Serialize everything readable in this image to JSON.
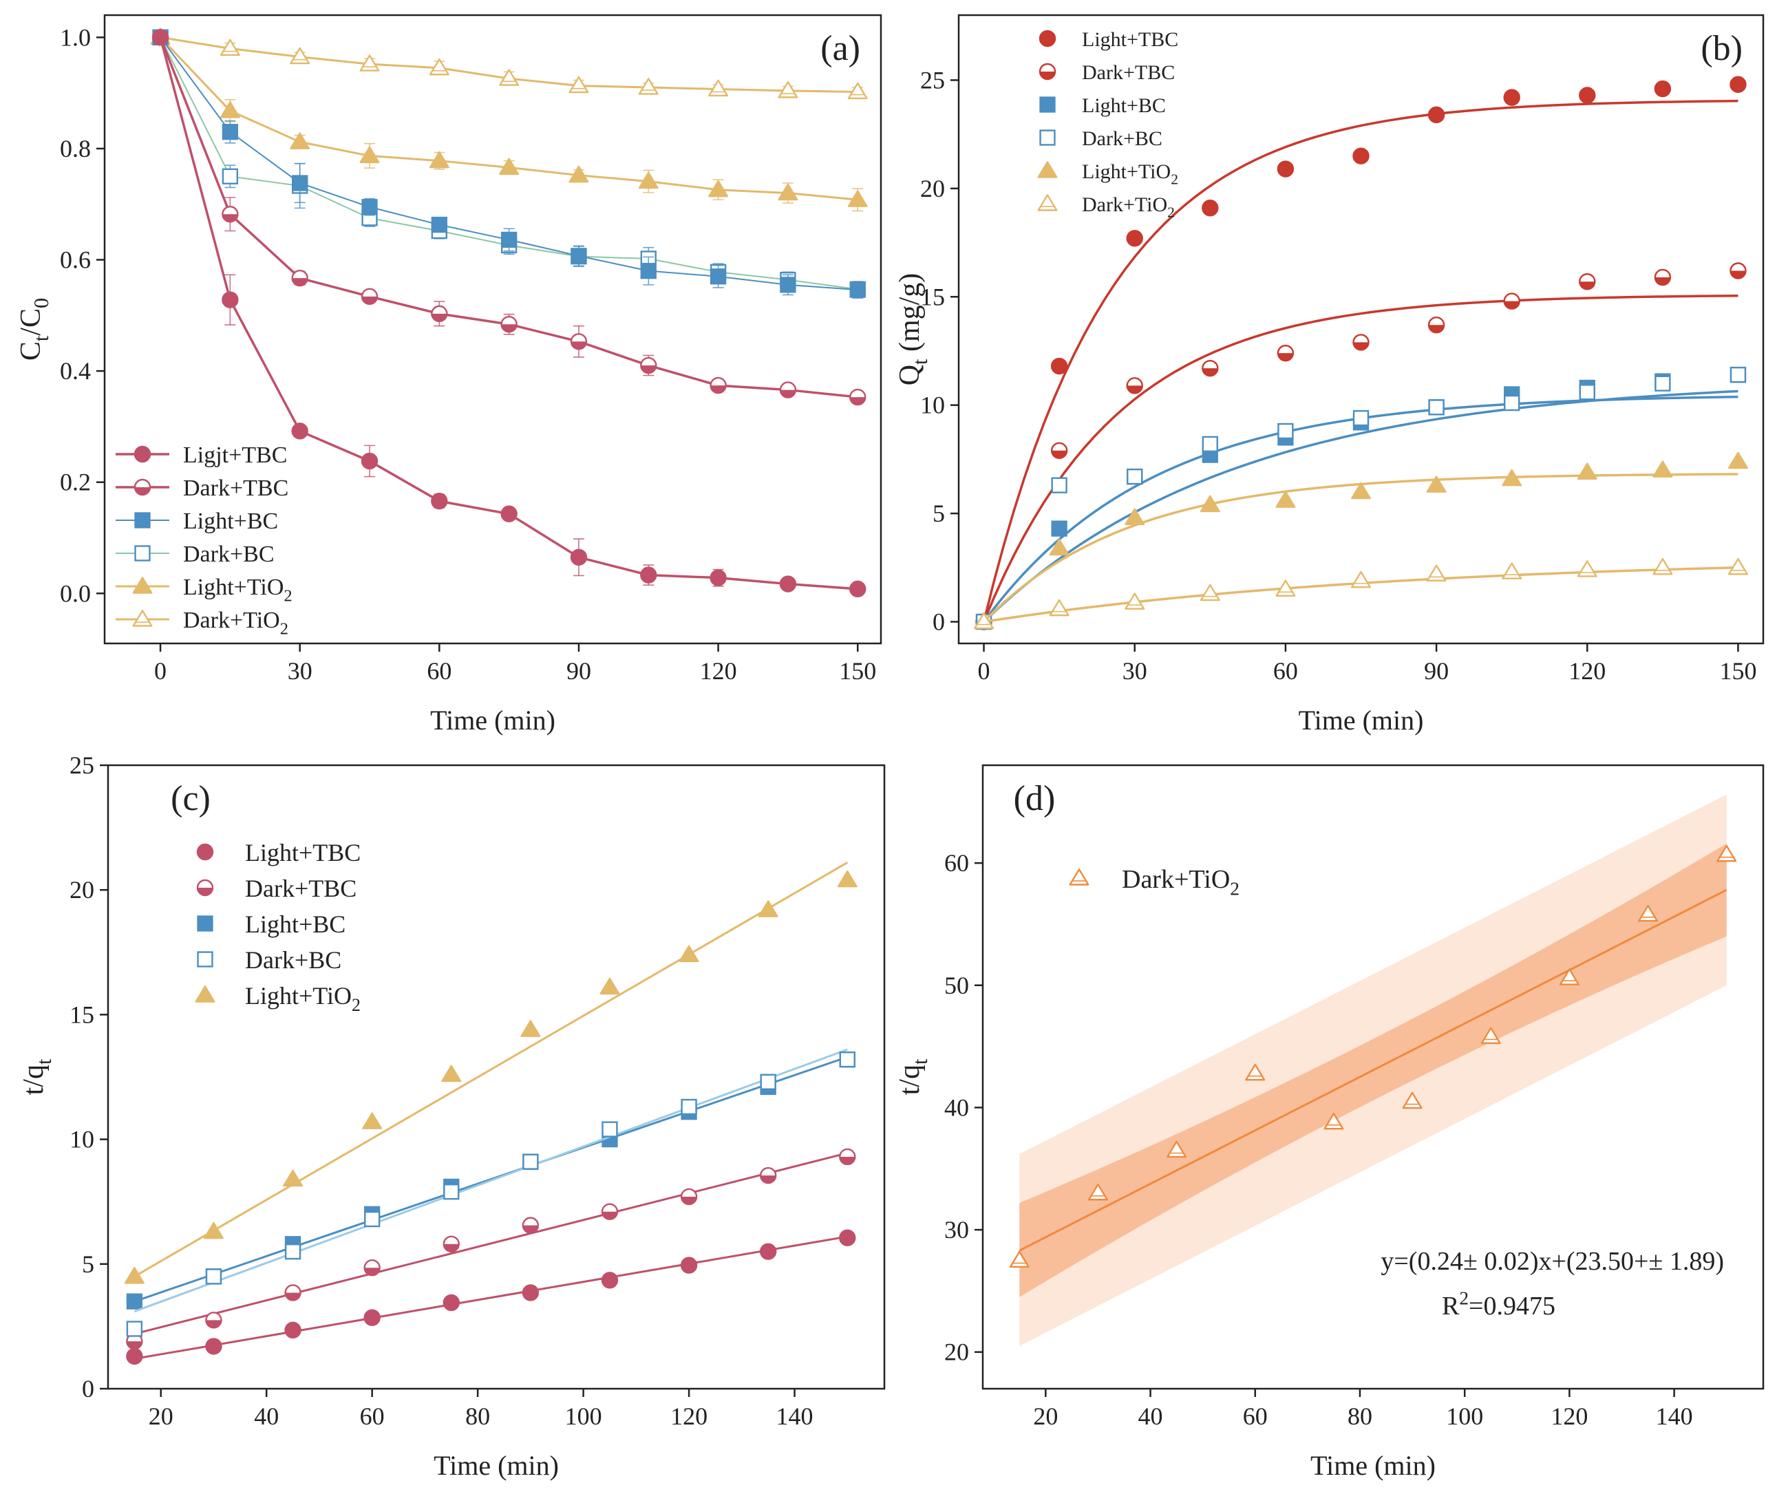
{
  "colors": {
    "tbc": "#c0506a",
    "tbc_b": "#c8392e",
    "bc": "#4a8ec2",
    "bc_dark_line": "#8cc7a4",
    "tio2": "#e3b96a",
    "tio2_d": "#f08a3c",
    "band_inner": "#f6b48a",
    "band_outer": "#fde3d2",
    "axis": "#222222"
  },
  "chart_data": [
    {
      "id": "a",
      "type": "line",
      "panel_label": "(a)",
      "xlabel": "Time (min)",
      "ylabel": "Ct/C0",
      "ylabel_main": "C",
      "ylabel_sub1": "t",
      "ylabel_slash": "/C",
      "ylabel_sub2": "0",
      "xlim": [
        -12,
        155
      ],
      "ylim": [
        -0.09,
        1.04
      ],
      "xticks": [
        0,
        30,
        60,
        90,
        120,
        150
      ],
      "xtick_labels": [
        "0",
        "30",
        "60",
        "90",
        "120",
        "150"
      ],
      "yticks": [
        0,
        0.2,
        0.4,
        0.6,
        0.8,
        1.0
      ],
      "ytick_labels": [
        "0.0",
        "0.2",
        "0.4",
        "0.6",
        "0.8",
        "1.0"
      ],
      "x": [
        0,
        15,
        30,
        45,
        60,
        75,
        90,
        105,
        120,
        135,
        150
      ],
      "series": [
        {
          "name": "Ligjt+TBC",
          "name_main": "Ligjt+TBC",
          "name_sub": "",
          "color_key": "tbc",
          "marker": "circle",
          "fill": "full",
          "lw": 3.5,
          "values": [
            1.0,
            0.528,
            0.292,
            0.238,
            0.166,
            0.143,
            0.065,
            0.033,
            0.028,
            0.017,
            0.008
          ],
          "errors": [
            0,
            0.045,
            0.01,
            0.028,
            0.012,
            0.01,
            0.033,
            0.018,
            0.015,
            0.008,
            0.005
          ]
        },
        {
          "name": "Dark+TBC",
          "name_main": "Dark+TBC",
          "name_sub": "",
          "color_key": "tbc",
          "marker": "circle",
          "fill": "half",
          "lw": 3.5,
          "values": [
            1.0,
            0.682,
            0.567,
            0.534,
            0.503,
            0.484,
            0.453,
            0.41,
            0.374,
            0.366,
            0.353
          ],
          "errors": [
            0,
            0.03,
            0.012,
            0.01,
            0.022,
            0.018,
            0.028,
            0.018,
            0.01,
            0.01,
            0.008
          ]
        },
        {
          "name": "Light+BC",
          "name_main": "Light+BC",
          "name_sub": "",
          "color_key": "bc",
          "marker": "square",
          "fill": "full",
          "lw": 2,
          "values": [
            1.0,
            0.83,
            0.738,
            0.695,
            0.663,
            0.636,
            0.607,
            0.58,
            0.57,
            0.555,
            0.546
          ],
          "errors": [
            0,
            0.02,
            0.035,
            0.015,
            0.012,
            0.02,
            0.018,
            0.025,
            0.02,
            0.018,
            0.015
          ]
        },
        {
          "name": "Dark+BC",
          "name_main": "Dark+BC",
          "name_sub": "",
          "color_key": "bc",
          "line_color_key": "bc_dark_line",
          "marker": "square",
          "fill": "open",
          "lw": 2,
          "values": [
            1.0,
            0.75,
            0.733,
            0.675,
            0.652,
            0.626,
            0.606,
            0.602,
            0.578,
            0.564,
            0.547
          ],
          "errors": [
            0,
            0.02,
            0.04,
            0.015,
            0.014,
            0.016,
            0.018,
            0.02,
            0.015,
            0.014,
            0.012
          ]
        },
        {
          "name": "Light+TiO2",
          "name_main": "Light+TiO",
          "name_sub": "2",
          "color_key": "tio2",
          "marker": "triangle",
          "fill": "full",
          "lw": 3,
          "values": [
            1.0,
            0.868,
            0.812,
            0.787,
            0.778,
            0.766,
            0.752,
            0.741,
            0.726,
            0.72,
            0.708
          ],
          "errors": [
            0,
            0.02,
            0.012,
            0.022,
            0.015,
            0.012,
            0.01,
            0.02,
            0.018,
            0.018,
            0.02
          ]
        },
        {
          "name": "Dark+TiO2",
          "name_main": "Dark+TiO",
          "name_sub": "2",
          "color_key": "tio2",
          "marker": "triangle",
          "fill": "open",
          "lw": 3,
          "values": [
            1.0,
            0.98,
            0.965,
            0.952,
            0.945,
            0.926,
            0.913,
            0.91,
            0.907,
            0.904,
            0.902
          ],
          "errors": [
            0,
            0.01,
            0.008,
            0.01,
            0.012,
            0.012,
            0.01,
            0.008,
            0.008,
            0.008,
            0.008
          ]
        }
      ]
    },
    {
      "id": "b",
      "type": "scatter",
      "panel_label": "(b)",
      "xlabel": "Time (min)",
      "ylabel": "Qt (mg/g)",
      "ylabel_main": "Q",
      "ylabel_sub": "t",
      "ylabel_rest": " (mg/g)",
      "xlim": [
        -5,
        155
      ],
      "ylim": [
        -1,
        28
      ],
      "xticks": [
        0,
        30,
        60,
        90,
        120,
        150
      ],
      "xtick_labels": [
        "0",
        "30",
        "60",
        "90",
        "120",
        "150"
      ],
      "yticks": [
        0,
        5,
        10,
        15,
        20,
        25
      ],
      "ytick_labels": [
        "0",
        "5",
        "10",
        "15",
        "20",
        "25"
      ],
      "x": [
        0,
        15,
        30,
        45,
        60,
        75,
        90,
        105,
        120,
        135,
        150
      ],
      "series": [
        {
          "name": "Light+TBC",
          "name_main": "Light+TBC",
          "name_sub": "",
          "color_key": "tbc_b",
          "marker": "circle",
          "fill": "full",
          "values": [
            0,
            11.8,
            17.7,
            19.1,
            20.9,
            21.5,
            23.4,
            24.2,
            24.3,
            24.6,
            24.8
          ],
          "fit_qe": 24.1,
          "fit_k": 0.04
        },
        {
          "name": "Dark+TBC",
          "name_main": "Dark+TBC",
          "name_sub": "",
          "color_key": "tbc_b",
          "marker": "circle",
          "fill": "half",
          "values": [
            0,
            7.9,
            10.9,
            11.7,
            12.4,
            12.9,
            13.7,
            14.8,
            15.7,
            15.9,
            16.2
          ],
          "fit_qe": 15.1,
          "fit_k": 0.038
        },
        {
          "name": "Light+BC",
          "name_main": "Light+BC",
          "name_sub": "",
          "color_key": "bc",
          "marker": "square",
          "fill": "full",
          "values": [
            0,
            4.3,
            6.7,
            7.7,
            8.5,
            9.2,
            9.9,
            10.5,
            10.8,
            11.1,
            11.4
          ],
          "fit_qe": 11.2,
          "fit_k": 0.02
        },
        {
          "name": "Dark+BC",
          "name_main": "Dark+BC",
          "name_sub": "",
          "color_key": "bc",
          "marker": "square",
          "fill": "open",
          "values": [
            0,
            6.3,
            6.7,
            8.2,
            8.8,
            9.4,
            9.9,
            10.1,
            10.6,
            11.0,
            11.4
          ],
          "fit_qe": 10.5,
          "fit_k": 0.03
        },
        {
          "name": "Light+TiO2",
          "name_main": "Light+TiO",
          "name_sub": "2",
          "color_key": "tio2",
          "marker": "triangle",
          "fill": "full",
          "values": [
            0,
            3.4,
            4.8,
            5.4,
            5.6,
            6.0,
            6.3,
            6.6,
            6.9,
            7.0,
            7.4
          ],
          "fit_qe": 6.85,
          "fit_k": 0.035
        },
        {
          "name": "Dark+TiO2",
          "name_main": "Dark+TiO",
          "name_sub": "2",
          "color_key": "tio2",
          "marker": "triangle",
          "fill": "open",
          "values": [
            0,
            0.6,
            0.9,
            1.3,
            1.5,
            1.9,
            2.2,
            2.3,
            2.4,
            2.5,
            2.5
          ],
          "fit_qe": 3.0,
          "fit_k": 0.012
        }
      ]
    },
    {
      "id": "c",
      "type": "scatter",
      "panel_label": "(c)",
      "xlabel": "Time (min)",
      "ylabel": "t/qt",
      "ylabel_main": "t/q",
      "ylabel_sub": "t",
      "xlim": [
        10,
        157
      ],
      "ylim": [
        0,
        25
      ],
      "xticks": [
        20,
        40,
        60,
        80,
        100,
        120,
        140
      ],
      "xtick_labels": [
        "20",
        "40",
        "60",
        "80",
        "100",
        "120",
        "140"
      ],
      "yticks": [
        0,
        5,
        10,
        15,
        20,
        25
      ],
      "ytick_labels": [
        "0",
        "5",
        "10",
        "15",
        "20",
        "25"
      ],
      "x": [
        15,
        30,
        45,
        60,
        75,
        90,
        105,
        120,
        135,
        150
      ],
      "series": [
        {
          "name": "Light+TBC",
          "name_main": "Light+TBC",
          "name_sub": "",
          "color_key": "tbc",
          "marker": "circle",
          "fill": "full",
          "values": [
            1.3,
            1.7,
            2.35,
            2.85,
            3.45,
            3.85,
            4.35,
            4.95,
            5.5,
            6.05
          ],
          "fit": [
            1.2,
            6.1
          ]
        },
        {
          "name": "Dark+TBC",
          "name_main": "Dark+TBC",
          "name_sub": "",
          "color_key": "tbc",
          "marker": "circle",
          "fill": "half",
          "values": [
            1.9,
            2.75,
            3.85,
            4.85,
            5.8,
            6.55,
            7.1,
            7.7,
            8.55,
            9.3
          ],
          "fit": [
            2.2,
            9.45
          ]
        },
        {
          "name": "Light+BC",
          "name_main": "Light+BC",
          "name_sub": "",
          "color_key": "bc",
          "marker": "square",
          "fill": "full",
          "values": [
            3.5,
            4.5,
            5.8,
            7.0,
            8.1,
            9.1,
            10.0,
            11.1,
            12.1,
            13.2
          ],
          "fit": [
            3.5,
            13.3
          ]
        },
        {
          "name": "Dark+BC",
          "name_main": "Dark+BC",
          "name_sub": "",
          "color_key": "bc",
          "marker": "square",
          "fill": "open",
          "values": [
            2.4,
            4.5,
            5.5,
            6.8,
            7.9,
            9.1,
            10.4,
            11.3,
            12.3,
            13.2
          ],
          "fit": [
            3.1,
            13.6
          ]
        },
        {
          "name": "Light+TiO2",
          "name_main": "Light+TiO",
          "name_sub": "2",
          "color_key": "tio2",
          "marker": "triangle",
          "fill": "full",
          "values": [
            4.5,
            6.3,
            8.4,
            10.7,
            12.6,
            14.4,
            16.1,
            17.4,
            19.2,
            20.4
          ],
          "fit": [
            4.5,
            21.1
          ]
        }
      ]
    },
    {
      "id": "d",
      "type": "scatter",
      "panel_label": "(d)",
      "xlabel": "Time (min)",
      "ylabel": "t/qt",
      "ylabel_main": "t/q",
      "ylabel_sub": "t",
      "xlim": [
        8,
        157
      ],
      "ylim": [
        17,
        68
      ],
      "xticks": [
        20,
        40,
        60,
        80,
        100,
        120,
        140
      ],
      "xtick_labels": [
        "20",
        "40",
        "60",
        "80",
        "100",
        "120",
        "140"
      ],
      "yticks": [
        20,
        30,
        40,
        50,
        60
      ],
      "ytick_labels": [
        "20",
        "30",
        "40",
        "50",
        "60"
      ],
      "x": [
        15,
        30,
        45,
        60,
        75,
        90,
        105,
        120,
        135,
        150
      ],
      "series": [
        {
          "name": "Dark+TiO2",
          "name_main": "Dark+TiO",
          "name_sub": "2",
          "color_key": "tio2_d",
          "marker": "triangle",
          "fill": "open",
          "values": [
            27.5,
            33.0,
            36.5,
            42.8,
            38.8,
            40.5,
            45.8,
            50.6,
            55.8,
            60.7
          ],
          "fit": [
            28.3,
            57.8
          ],
          "ci": [
            [
              24.5,
              32.2
            ],
            [
              54.0,
              61.6
            ]
          ],
          "pi": [
            [
              20.5,
              36.2
            ],
            [
              50.0,
              65.6
            ]
          ]
        }
      ],
      "equation": "y=(0.24± 0.02)x+(23.50+± 1.89)",
      "r2_prefix": "R",
      "r2_sup": "2",
      "r2_value": "=0.9475"
    }
  ]
}
